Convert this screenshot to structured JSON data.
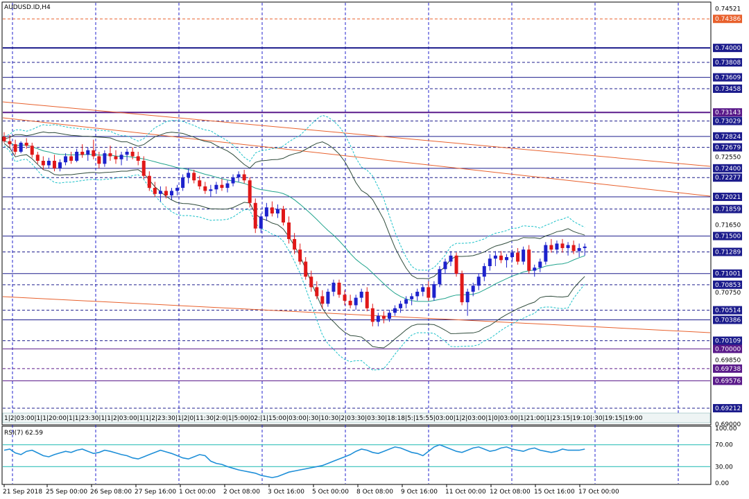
{
  "chart_data": {
    "type": "candlestick",
    "title": "AUDUSD.ID,H4",
    "ylim": [
      0.69,
      0.746
    ],
    "price_labels": [
      {
        "text": "0.74521",
        "value": 0.74521,
        "style": "plain"
      },
      {
        "text": "0.74386",
        "value": 0.74386,
        "style": "orange"
      },
      {
        "text": "0.74000",
        "value": 0.74,
        "style": "navy"
      },
      {
        "text": "0.73808",
        "value": 0.73808,
        "style": "navy"
      },
      {
        "text": "0.73609",
        "value": 0.73609,
        "style": "navy"
      },
      {
        "text": "0.73458",
        "value": 0.73458,
        "style": "navy"
      },
      {
        "text": "0.73143",
        "value": 0.73143,
        "style": "purple"
      },
      {
        "text": "0.73029",
        "value": 0.73029,
        "style": "navy"
      },
      {
        "text": "0.72824",
        "value": 0.72824,
        "style": "navy"
      },
      {
        "text": "0.72679",
        "value": 0.72679,
        "style": "navy"
      },
      {
        "text": "0.72550",
        "value": 0.7255,
        "style": "plain"
      },
      {
        "text": "0.72400",
        "value": 0.724,
        "style": "navy"
      },
      {
        "text": "0.72277",
        "value": 0.72277,
        "style": "navy"
      },
      {
        "text": "0.72021",
        "value": 0.72021,
        "style": "navy"
      },
      {
        "text": "0.71859",
        "value": 0.71859,
        "style": "navy"
      },
      {
        "text": "0.71650",
        "value": 0.7165,
        "style": "plain"
      },
      {
        "text": "0.71500",
        "value": 0.715,
        "style": "navy"
      },
      {
        "text": "0.71289",
        "value": 0.71289,
        "style": "navy"
      },
      {
        "text": "0.71001",
        "value": 0.71001,
        "style": "navy"
      },
      {
        "text": "0.70853",
        "value": 0.70853,
        "style": "navy"
      },
      {
        "text": "0.70750",
        "value": 0.7075,
        "style": "plain"
      },
      {
        "text": "0.70514",
        "value": 0.70514,
        "style": "navy"
      },
      {
        "text": "0.70386",
        "value": 0.70386,
        "style": "navy"
      },
      {
        "text": "0.70109",
        "value": 0.70109,
        "style": "navy"
      },
      {
        "text": "0.70000",
        "value": 0.7,
        "style": "purple"
      },
      {
        "text": "0.69850",
        "value": 0.6985,
        "style": "plain"
      },
      {
        "text": "0.69738",
        "value": 0.69738,
        "style": "purple"
      },
      {
        "text": "0.69576",
        "value": 0.69576,
        "style": "purple"
      },
      {
        "text": "0.69212",
        "value": 0.69212,
        "style": "navy"
      },
      {
        "text": "0.69000",
        "value": 0.69,
        "style": "plain"
      }
    ],
    "horizontal_levels": [
      {
        "value": 0.74386,
        "color": "#e8602c",
        "dash": true
      },
      {
        "value": 0.74,
        "color": "#1c1c8c",
        "dash": false,
        "width": 2
      },
      {
        "value": 0.73808,
        "color": "#1c1c8c",
        "dash": true
      },
      {
        "value": 0.73609,
        "color": "#1c1c8c",
        "dash": false
      },
      {
        "value": 0.73458,
        "color": "#1c1c8c",
        "dash": true
      },
      {
        "value": 0.73143,
        "color": "#5a1a8a",
        "dash": false,
        "width": 2
      },
      {
        "value": 0.73029,
        "color": "#1c1c8c",
        "dash": true
      },
      {
        "value": 0.72824,
        "color": "#1c1c8c",
        "dash": false
      },
      {
        "value": 0.72679,
        "color": "#1c1c8c",
        "dash": true
      },
      {
        "value": 0.724,
        "color": "#1c1c8c",
        "dash": false
      },
      {
        "value": 0.72277,
        "color": "#1c1c8c",
        "dash": true
      },
      {
        "value": 0.72021,
        "color": "#1c1c8c",
        "dash": false
      },
      {
        "value": 0.71859,
        "color": "#1c1c8c",
        "dash": true
      },
      {
        "value": 0.715,
        "color": "#1c1c8c",
        "dash": false
      },
      {
        "value": 0.71289,
        "color": "#1c1c8c",
        "dash": true
      },
      {
        "value": 0.71001,
        "color": "#1c1c8c",
        "dash": false
      },
      {
        "value": 0.70853,
        "color": "#1c1c8c",
        "dash": true
      },
      {
        "value": 0.70514,
        "color": "#1c1c8c",
        "dash": true
      },
      {
        "value": 0.70386,
        "color": "#1c1c8c",
        "dash": false
      },
      {
        "value": 0.70109,
        "color": "#1c1c8c",
        "dash": true
      },
      {
        "value": 0.7,
        "color": "#5a1a8a",
        "dash": false
      },
      {
        "value": 0.69738,
        "color": "#5a1a8a",
        "dash": true
      },
      {
        "value": 0.69576,
        "color": "#5a1a8a",
        "dash": false
      },
      {
        "value": 0.69212,
        "color": "#1c1c8c",
        "dash": true
      }
    ],
    "x_ticks": [
      "21 Sep 2018",
      "25 Sep 00:00",
      "26 Sep 08:00",
      "27 Sep 16:00",
      "1 Oct 00:00",
      "2 Oct 08:00",
      "3 Oct 16:00",
      "5 Oct 00:00",
      "8 Oct 08:00",
      "9 Oct 16:00",
      "11 Oct 00:00",
      "12 Oct 08:00",
      "15 Oct 16:00",
      "17 Oct 00:00"
    ],
    "x_tick_index": [
      0,
      10,
      20,
      30,
      40,
      50,
      60,
      70,
      80,
      90,
      100,
      110,
      120,
      130
    ],
    "vertical_grid_index": [
      0,
      40,
      78,
      116,
      154
    ],
    "candles": [
      [
        0.7282,
        0.7288,
        0.7274,
        0.7276
      ],
      [
        0.7276,
        0.7284,
        0.7268,
        0.7272
      ],
      [
        0.7272,
        0.7278,
        0.7258,
        0.7262
      ],
      [
        0.7262,
        0.7276,
        0.726,
        0.7274
      ],
      [
        0.7274,
        0.728,
        0.7266,
        0.727
      ],
      [
        0.727,
        0.7274,
        0.7254,
        0.7258
      ],
      [
        0.7258,
        0.7262,
        0.7246,
        0.725
      ],
      [
        0.725,
        0.7256,
        0.7238,
        0.7244
      ],
      [
        0.7244,
        0.7254,
        0.724,
        0.725
      ],
      [
        0.725,
        0.7258,
        0.7236,
        0.724
      ],
      [
        0.724,
        0.7252,
        0.7236,
        0.7248
      ],
      [
        0.7248,
        0.726,
        0.7244,
        0.7256
      ],
      [
        0.7256,
        0.7262,
        0.7246,
        0.725
      ],
      [
        0.725,
        0.7266,
        0.7248,
        0.7262
      ],
      [
        0.7262,
        0.7272,
        0.7254,
        0.7258
      ],
      [
        0.7258,
        0.7268,
        0.725,
        0.7264
      ],
      [
        0.7264,
        0.7278,
        0.7252,
        0.7256
      ],
      [
        0.7256,
        0.7262,
        0.724,
        0.7246
      ],
      [
        0.7246,
        0.7264,
        0.7242,
        0.726
      ],
      [
        0.726,
        0.727,
        0.725,
        0.7256
      ],
      [
        0.7256,
        0.7264,
        0.7246,
        0.7252
      ],
      [
        0.7252,
        0.7262,
        0.7244,
        0.7258
      ],
      [
        0.7258,
        0.7266,
        0.725,
        0.7262
      ],
      [
        0.7262,
        0.7268,
        0.7252,
        0.7256
      ],
      [
        0.7256,
        0.7262,
        0.7244,
        0.725
      ],
      [
        0.725,
        0.7256,
        0.7226,
        0.723
      ],
      [
        0.723,
        0.7236,
        0.721,
        0.7214
      ],
      [
        0.7214,
        0.7222,
        0.7202,
        0.7206
      ],
      [
        0.7206,
        0.7216,
        0.7196,
        0.721
      ],
      [
        0.721,
        0.7216,
        0.72,
        0.7204
      ],
      [
        0.7204,
        0.7214,
        0.7198,
        0.721
      ],
      [
        0.721,
        0.7218,
        0.7204,
        0.7214
      ],
      [
        0.7214,
        0.7232,
        0.721,
        0.7228
      ],
      [
        0.7228,
        0.724,
        0.722,
        0.7234
      ],
      [
        0.7234,
        0.7238,
        0.722,
        0.7224
      ],
      [
        0.7224,
        0.723,
        0.7212,
        0.7216
      ],
      [
        0.7216,
        0.7222,
        0.7206,
        0.721
      ],
      [
        0.721,
        0.7218,
        0.7202,
        0.7212
      ],
      [
        0.7212,
        0.7222,
        0.7206,
        0.7218
      ],
      [
        0.7218,
        0.7226,
        0.721,
        0.7214
      ],
      [
        0.7214,
        0.7224,
        0.7208,
        0.722
      ],
      [
        0.722,
        0.7232,
        0.7216,
        0.7228
      ],
      [
        0.7228,
        0.7236,
        0.7222,
        0.7232
      ],
      [
        0.7232,
        0.7238,
        0.722,
        0.7224
      ],
      [
        0.7224,
        0.7228,
        0.7188,
        0.7194
      ],
      [
        0.7194,
        0.72,
        0.7154,
        0.716
      ],
      [
        0.716,
        0.718,
        0.7154,
        0.7176
      ],
      [
        0.7176,
        0.7194,
        0.717,
        0.7188
      ],
      [
        0.7188,
        0.7196,
        0.7176,
        0.718
      ],
      [
        0.718,
        0.7192,
        0.7174,
        0.7186
      ],
      [
        0.7186,
        0.719,
        0.7164,
        0.7168
      ],
      [
        0.7168,
        0.7176,
        0.714,
        0.7146
      ],
      [
        0.7146,
        0.7154,
        0.7126,
        0.7132
      ],
      [
        0.7132,
        0.714,
        0.7112,
        0.7116
      ],
      [
        0.7116,
        0.7122,
        0.7092,
        0.7096
      ],
      [
        0.7096,
        0.7104,
        0.7076,
        0.7082
      ],
      [
        0.7082,
        0.709,
        0.7066,
        0.707
      ],
      [
        0.707,
        0.7078,
        0.7054,
        0.706
      ],
      [
        0.706,
        0.708,
        0.7056,
        0.7076
      ],
      [
        0.7076,
        0.7092,
        0.707,
        0.7088
      ],
      [
        0.7088,
        0.7092,
        0.7068,
        0.7072
      ],
      [
        0.7072,
        0.7078,
        0.7058,
        0.7064
      ],
      [
        0.7064,
        0.7072,
        0.7054,
        0.7058
      ],
      [
        0.7058,
        0.7072,
        0.7052,
        0.7068
      ],
      [
        0.7068,
        0.708,
        0.7062,
        0.7076
      ],
      [
        0.7076,
        0.7082,
        0.705,
        0.7054
      ],
      [
        0.7054,
        0.706,
        0.703,
        0.7036
      ],
      [
        0.7036,
        0.7048,
        0.703,
        0.7044
      ],
      [
        0.7044,
        0.705,
        0.7034,
        0.704
      ],
      [
        0.704,
        0.7052,
        0.7036,
        0.7048
      ],
      [
        0.7048,
        0.7058,
        0.7044,
        0.7054
      ],
      [
        0.7054,
        0.7064,
        0.7048,
        0.706
      ],
      [
        0.706,
        0.707,
        0.7054,
        0.7066
      ],
      [
        0.7066,
        0.7074,
        0.7058,
        0.707
      ],
      [
        0.707,
        0.708,
        0.7064,
        0.7076
      ],
      [
        0.7076,
        0.7086,
        0.707,
        0.7082
      ],
      [
        0.7082,
        0.709,
        0.7064,
        0.7068
      ],
      [
        0.7068,
        0.709,
        0.7064,
        0.7086
      ],
      [
        0.7086,
        0.711,
        0.7082,
        0.7106
      ],
      [
        0.7106,
        0.712,
        0.71,
        0.7116
      ],
      [
        0.7116,
        0.713,
        0.711,
        0.7124
      ],
      [
        0.7124,
        0.7128,
        0.7096,
        0.71
      ],
      [
        0.71,
        0.7104,
        0.7058,
        0.7062
      ],
      [
        0.7062,
        0.708,
        0.7044,
        0.7076
      ],
      [
        0.7076,
        0.7088,
        0.707,
        0.7084
      ],
      [
        0.7084,
        0.71,
        0.7078,
        0.7096
      ],
      [
        0.7096,
        0.7114,
        0.709,
        0.711
      ],
      [
        0.711,
        0.7126,
        0.7104,
        0.712
      ],
      [
        0.712,
        0.713,
        0.711,
        0.7124
      ],
      [
        0.7124,
        0.713,
        0.7114,
        0.7118
      ],
      [
        0.7118,
        0.7126,
        0.7108,
        0.7122
      ],
      [
        0.7122,
        0.7132,
        0.7116,
        0.7128
      ],
      [
        0.7128,
        0.7134,
        0.7112,
        0.7116
      ],
      [
        0.7116,
        0.7136,
        0.7112,
        0.7132
      ],
      [
        0.7132,
        0.7138,
        0.71,
        0.7104
      ],
      [
        0.7104,
        0.7112,
        0.7096,
        0.7108
      ],
      [
        0.7108,
        0.712,
        0.7102,
        0.7116
      ],
      [
        0.7116,
        0.7142,
        0.7112,
        0.7138
      ],
      [
        0.7138,
        0.7146,
        0.7128,
        0.7132
      ],
      [
        0.7132,
        0.7144,
        0.7126,
        0.714
      ],
      [
        0.714,
        0.7146,
        0.7128,
        0.7134
      ],
      [
        0.7134,
        0.7142,
        0.7124,
        0.7138
      ],
      [
        0.7138,
        0.7144,
        0.7126,
        0.713
      ],
      [
        0.713,
        0.714,
        0.7122,
        0.7134
      ],
      [
        0.7134,
        0.714,
        0.7124,
        0.7136
      ]
    ],
    "rsi": {
      "label": "RSI(7) 62.59",
      "ylim": [
        0,
        100
      ],
      "ticks": [
        {
          "text": "100.00",
          "value": 100
        },
        {
          "text": "70.00",
          "value": 70
        },
        {
          "text": "30.00",
          "value": 30
        },
        {
          "text": "0.00",
          "value": 0
        }
      ],
      "values": [
        60,
        62,
        55,
        52,
        58,
        60,
        55,
        50,
        48,
        52,
        55,
        58,
        56,
        60,
        62,
        58,
        54,
        56,
        60,
        58,
        55,
        52,
        50,
        46,
        44,
        48,
        52,
        56,
        60,
        57,
        54,
        50,
        46,
        44,
        48,
        52,
        50,
        40,
        36,
        34,
        30,
        27,
        24,
        22,
        20,
        18,
        14,
        12,
        10,
        12,
        16,
        20,
        22,
        24,
        26,
        28,
        30,
        32,
        36,
        40,
        44,
        48,
        52,
        58,
        62,
        60,
        56,
        54,
        58,
        62,
        66,
        64,
        60,
        56,
        54,
        50,
        58,
        66,
        70,
        66,
        62,
        58,
        56,
        60,
        64,
        66,
        62,
        58,
        60,
        64,
        66,
        62,
        60,
        58,
        62,
        64,
        60,
        58,
        56,
        58,
        62,
        60,
        60,
        60,
        62
      ]
    },
    "bottom_strip": "1|2|03:00|1|1|20:00|1|1|23:30|1|1|2|03:00|1|1|2|23:30|1|2|0|11:30|2:0|1|5:00|02:|1|15:00|03:00|:30|10:30|2|03:30|03:30|18:18|5:|15:55|03:00|1|2|03:00|1|0|03:00|1|21:00|1|23:15|19:10|:30|19:15|19:00",
    "colors": {
      "bull": "#1d22cc",
      "bear": "#e01818",
      "resistance_navy": "#1c1c8c",
      "resistance_purple": "#5a1a8a",
      "trendline_orange": "#e8602c",
      "grid_blue": "#2222cc",
      "band_teal": "#1fa38c",
      "band_dark": "#2e4a3a",
      "band_cyan": "#19c0c8",
      "rsi_line": "#1e8fd8",
      "rsi_level": "#19b8b0"
    }
  }
}
